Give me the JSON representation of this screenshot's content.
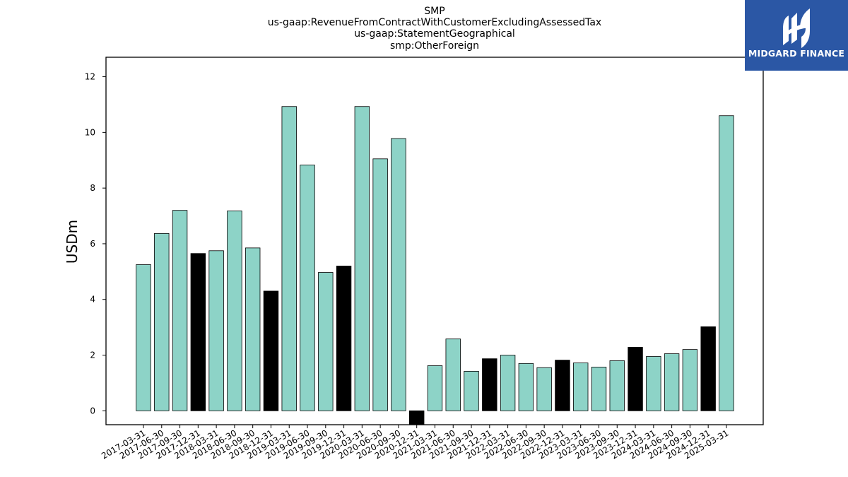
{
  "brand": {
    "name": "MIDGARD FINANCE",
    "bg_color": "#2b57a5"
  },
  "chart_data": {
    "type": "bar",
    "title_lines": [
      "SMP",
      "us-gaap:RevenueFromContractWithCustomerExcludingAssessedTax",
      "us-gaap:StatementGeographical",
      "smp:OtherForeign"
    ],
    "xlabel": "",
    "ylabel": "USDm",
    "ylim": [
      -0.5,
      12.7
    ],
    "yticks": [
      0,
      2,
      4,
      6,
      8,
      10,
      12
    ],
    "categories": [
      "2017-03-31",
      "2017-06-30",
      "2017-09-30",
      "2017-12-31",
      "2018-03-31",
      "2018-06-30",
      "2018-09-30",
      "2018-12-31",
      "2019-03-31",
      "2019-06-30",
      "2019-09-30",
      "2019-12-31",
      "2020-03-31",
      "2020-06-30",
      "2020-09-30",
      "2020-12-31",
      "2021-03-31",
      "2021-06-30",
      "2021-09-30",
      "2021-12-31",
      "2022-03-31",
      "2022-06-30",
      "2022-09-30",
      "2022-12-31",
      "2023-03-31",
      "2023-06-30",
      "2023-09-30",
      "2023-12-31",
      "2024-03-31",
      "2024-06-30",
      "2024-09-30",
      "2024-12-31",
      "2025-03-31"
    ],
    "values": [
      5.25,
      6.37,
      7.2,
      5.65,
      5.75,
      7.18,
      5.85,
      4.3,
      10.93,
      8.83,
      4.97,
      5.2,
      10.93,
      9.05,
      9.78,
      -0.5,
      1.62,
      2.58,
      1.42,
      1.87,
      2.0,
      1.7,
      1.55,
      1.82,
      1.72,
      1.57,
      1.8,
      2.28,
      1.95,
      2.05,
      2.2,
      3.02,
      10.6
    ],
    "highlight": [
      false,
      false,
      false,
      true,
      false,
      false,
      false,
      true,
      false,
      false,
      false,
      true,
      false,
      false,
      false,
      true,
      false,
      false,
      false,
      true,
      false,
      false,
      false,
      true,
      false,
      false,
      false,
      true,
      false,
      false,
      false,
      true,
      false
    ],
    "colors": {
      "bar": "#8dd3c7",
      "highlight": "#000000",
      "edge": "#000000"
    },
    "grid": false,
    "legend": "none"
  }
}
